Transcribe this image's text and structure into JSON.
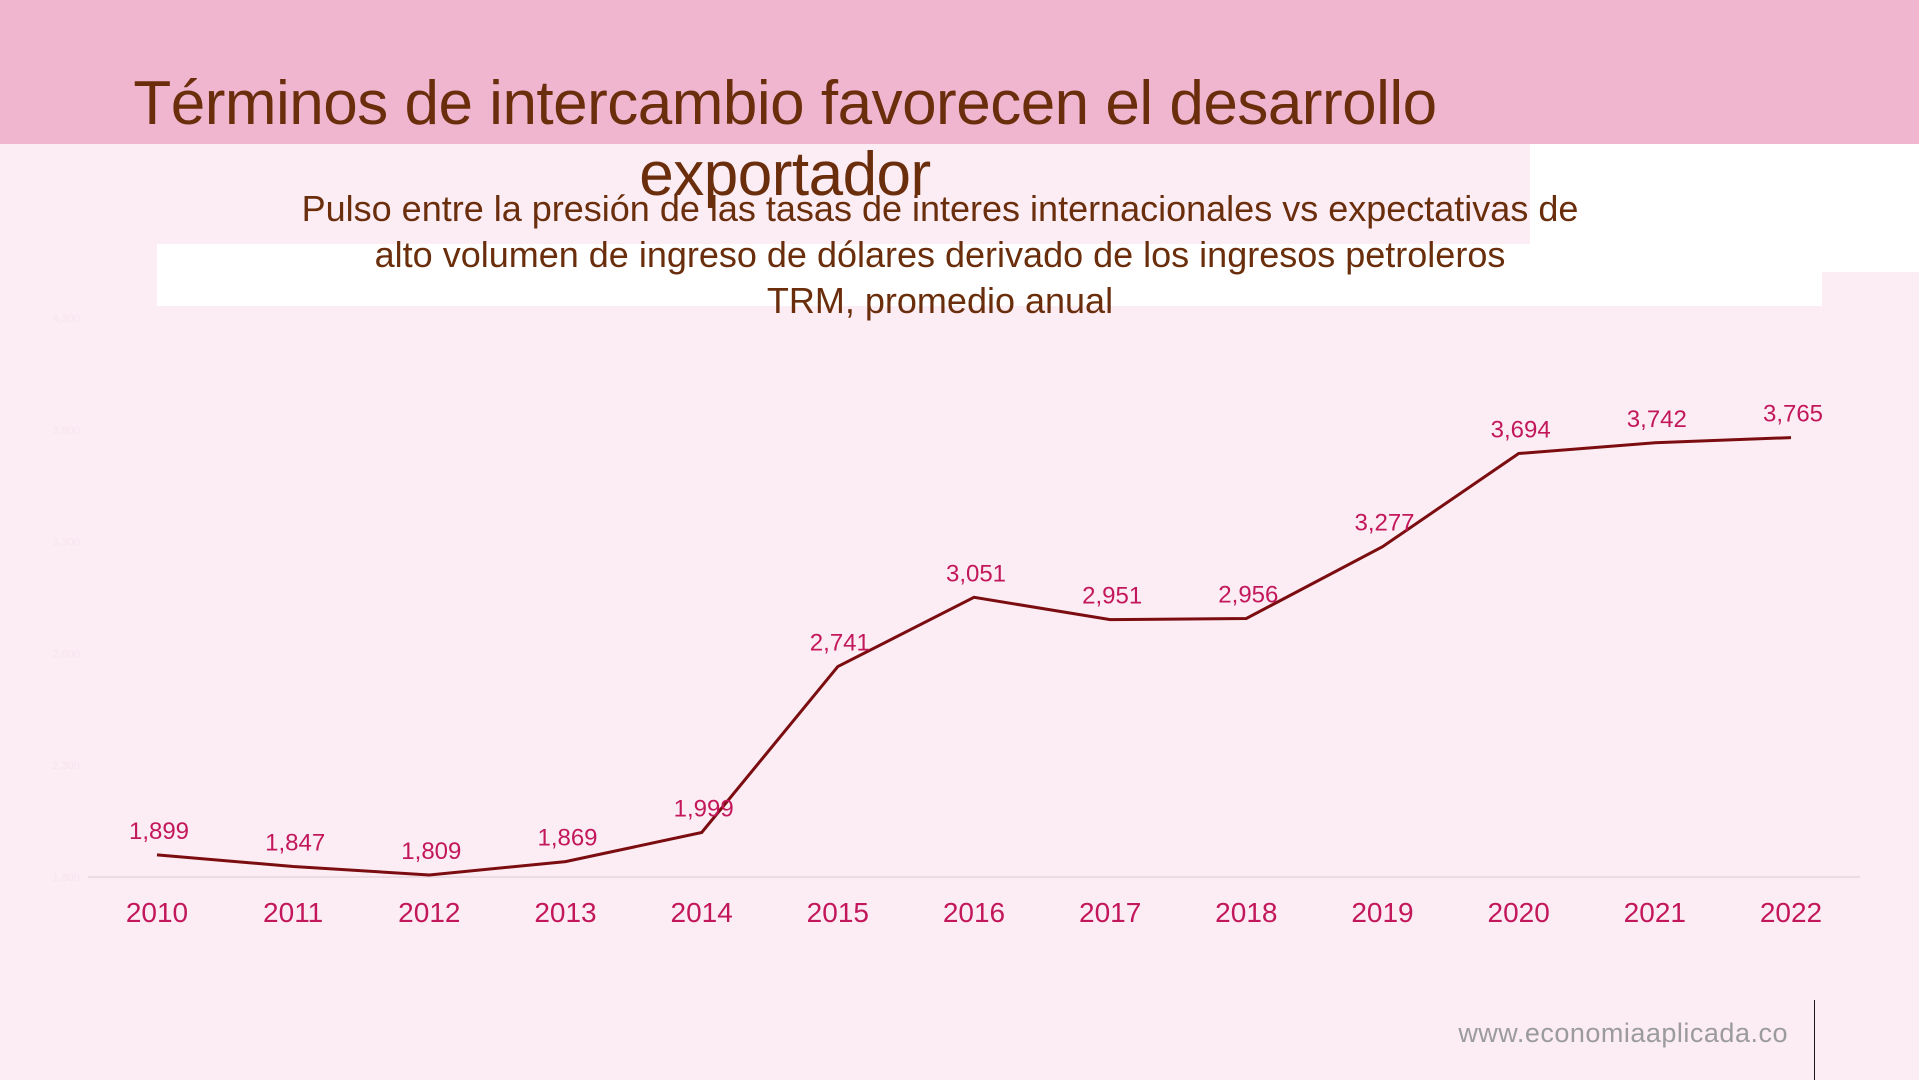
{
  "header": {
    "title": "Términos de intercambio favorecen el desarrollo exportador"
  },
  "chart_data": {
    "type": "line",
    "title_lines": [
      "Pulso entre la presión de las tasas de interes internacionales vs expectativas de",
      "alto volumen de ingreso de dólares derivado de los ingresos petroleros",
      "TRM, promedio anual"
    ],
    "categories": [
      "2010",
      "2011",
      "2012",
      "2013",
      "2014",
      "2015",
      "2016",
      "2017",
      "2018",
      "2019",
      "2020",
      "2021",
      "2022"
    ],
    "series": [
      {
        "values": [
          1899,
          1847,
          1809,
          1869,
          1999,
          2741,
          3051,
          2951,
          2956,
          3277,
          3694,
          3742,
          3765
        ]
      }
    ],
    "data_labels": [
      "1,899",
      "1,847",
      "1,809",
      "1,869",
      "1,999",
      "2,741",
      "3,051",
      "2,951",
      "2,956",
      "3,277",
      "3,694",
      "3,742",
      "3,765"
    ],
    "y_ticks": [
      "1,800",
      "2,300",
      "2,800",
      "3,300",
      "3,800",
      "4,300"
    ],
    "ylim": [
      1800,
      4300
    ],
    "grid": false,
    "legend": "none",
    "colors": {
      "line": "#7b0d10",
      "labels": "#c2185b",
      "y_tick_labels": "#f7e4ee",
      "axis": "#e8d5de"
    }
  },
  "footer": {
    "source": "www.economiaaplicada.co"
  }
}
